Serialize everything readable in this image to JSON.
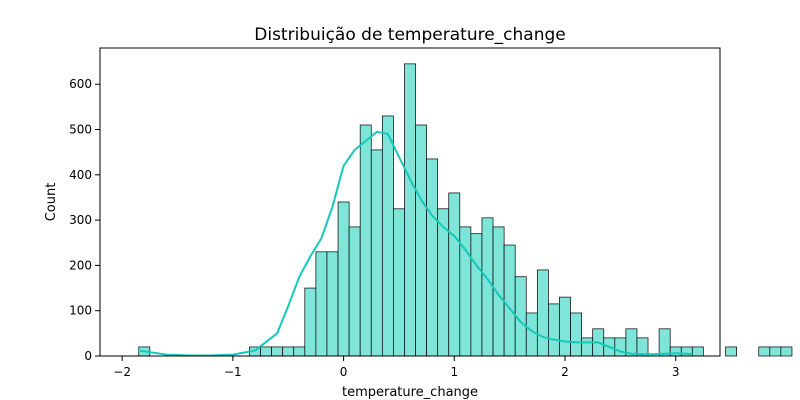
{
  "chart_data": {
    "type": "bar",
    "title": "Distribuição de temperature_change",
    "xlabel": "temperature_change",
    "ylabel": "Count",
    "xlim": [
      -2.2,
      3.4
    ],
    "ylim": [
      0,
      680
    ],
    "xticks": [
      -2,
      -1,
      0,
      1,
      2,
      3
    ],
    "yticks": [
      0,
      100,
      200,
      300,
      400,
      500,
      600
    ],
    "grid": false,
    "colors": {
      "bar_fill": "#7fe5d8",
      "bar_edge": "#000000",
      "kde_line": "#14c8bc"
    },
    "bins": {
      "start": -1.85,
      "width": 0.1,
      "counts": [
        20,
        0,
        0,
        0,
        0,
        0,
        0,
        0,
        0,
        0,
        20,
        20,
        20,
        20,
        20,
        150,
        230,
        230,
        340,
        285,
        510,
        455,
        530,
        325,
        645,
        510,
        435,
        325,
        360,
        285,
        270,
        305,
        285,
        245,
        175,
        95,
        190,
        115,
        130,
        95,
        40,
        60,
        40,
        40,
        60,
        40,
        0,
        60,
        20,
        20,
        20,
        0,
        0,
        20,
        0,
        0,
        20,
        20,
        20
      ]
    },
    "kde": {
      "x": [
        -1.85,
        -1.6,
        -1.4,
        -1.2,
        -1.0,
        -0.8,
        -0.6,
        -0.5,
        -0.4,
        -0.3,
        -0.2,
        -0.1,
        0.0,
        0.1,
        0.2,
        0.3,
        0.4,
        0.5,
        0.6,
        0.7,
        0.8,
        0.9,
        1.0,
        1.1,
        1.2,
        1.3,
        1.4,
        1.5,
        1.6,
        1.7,
        1.8,
        1.9,
        2.0,
        2.1,
        2.2,
        2.3,
        2.4,
        2.5,
        2.6,
        2.7,
        2.8,
        2.9,
        3.0,
        3.1,
        3.15
      ],
      "y": [
        12,
        3,
        1,
        1,
        3,
        12,
        50,
        110,
        175,
        220,
        260,
        330,
        420,
        455,
        475,
        495,
        490,
        440,
        390,
        345,
        310,
        285,
        265,
        235,
        200,
        170,
        135,
        105,
        75,
        55,
        42,
        36,
        32,
        30,
        30,
        30,
        20,
        10,
        5,
        4,
        4,
        5,
        6,
        5,
        4
      ]
    }
  }
}
